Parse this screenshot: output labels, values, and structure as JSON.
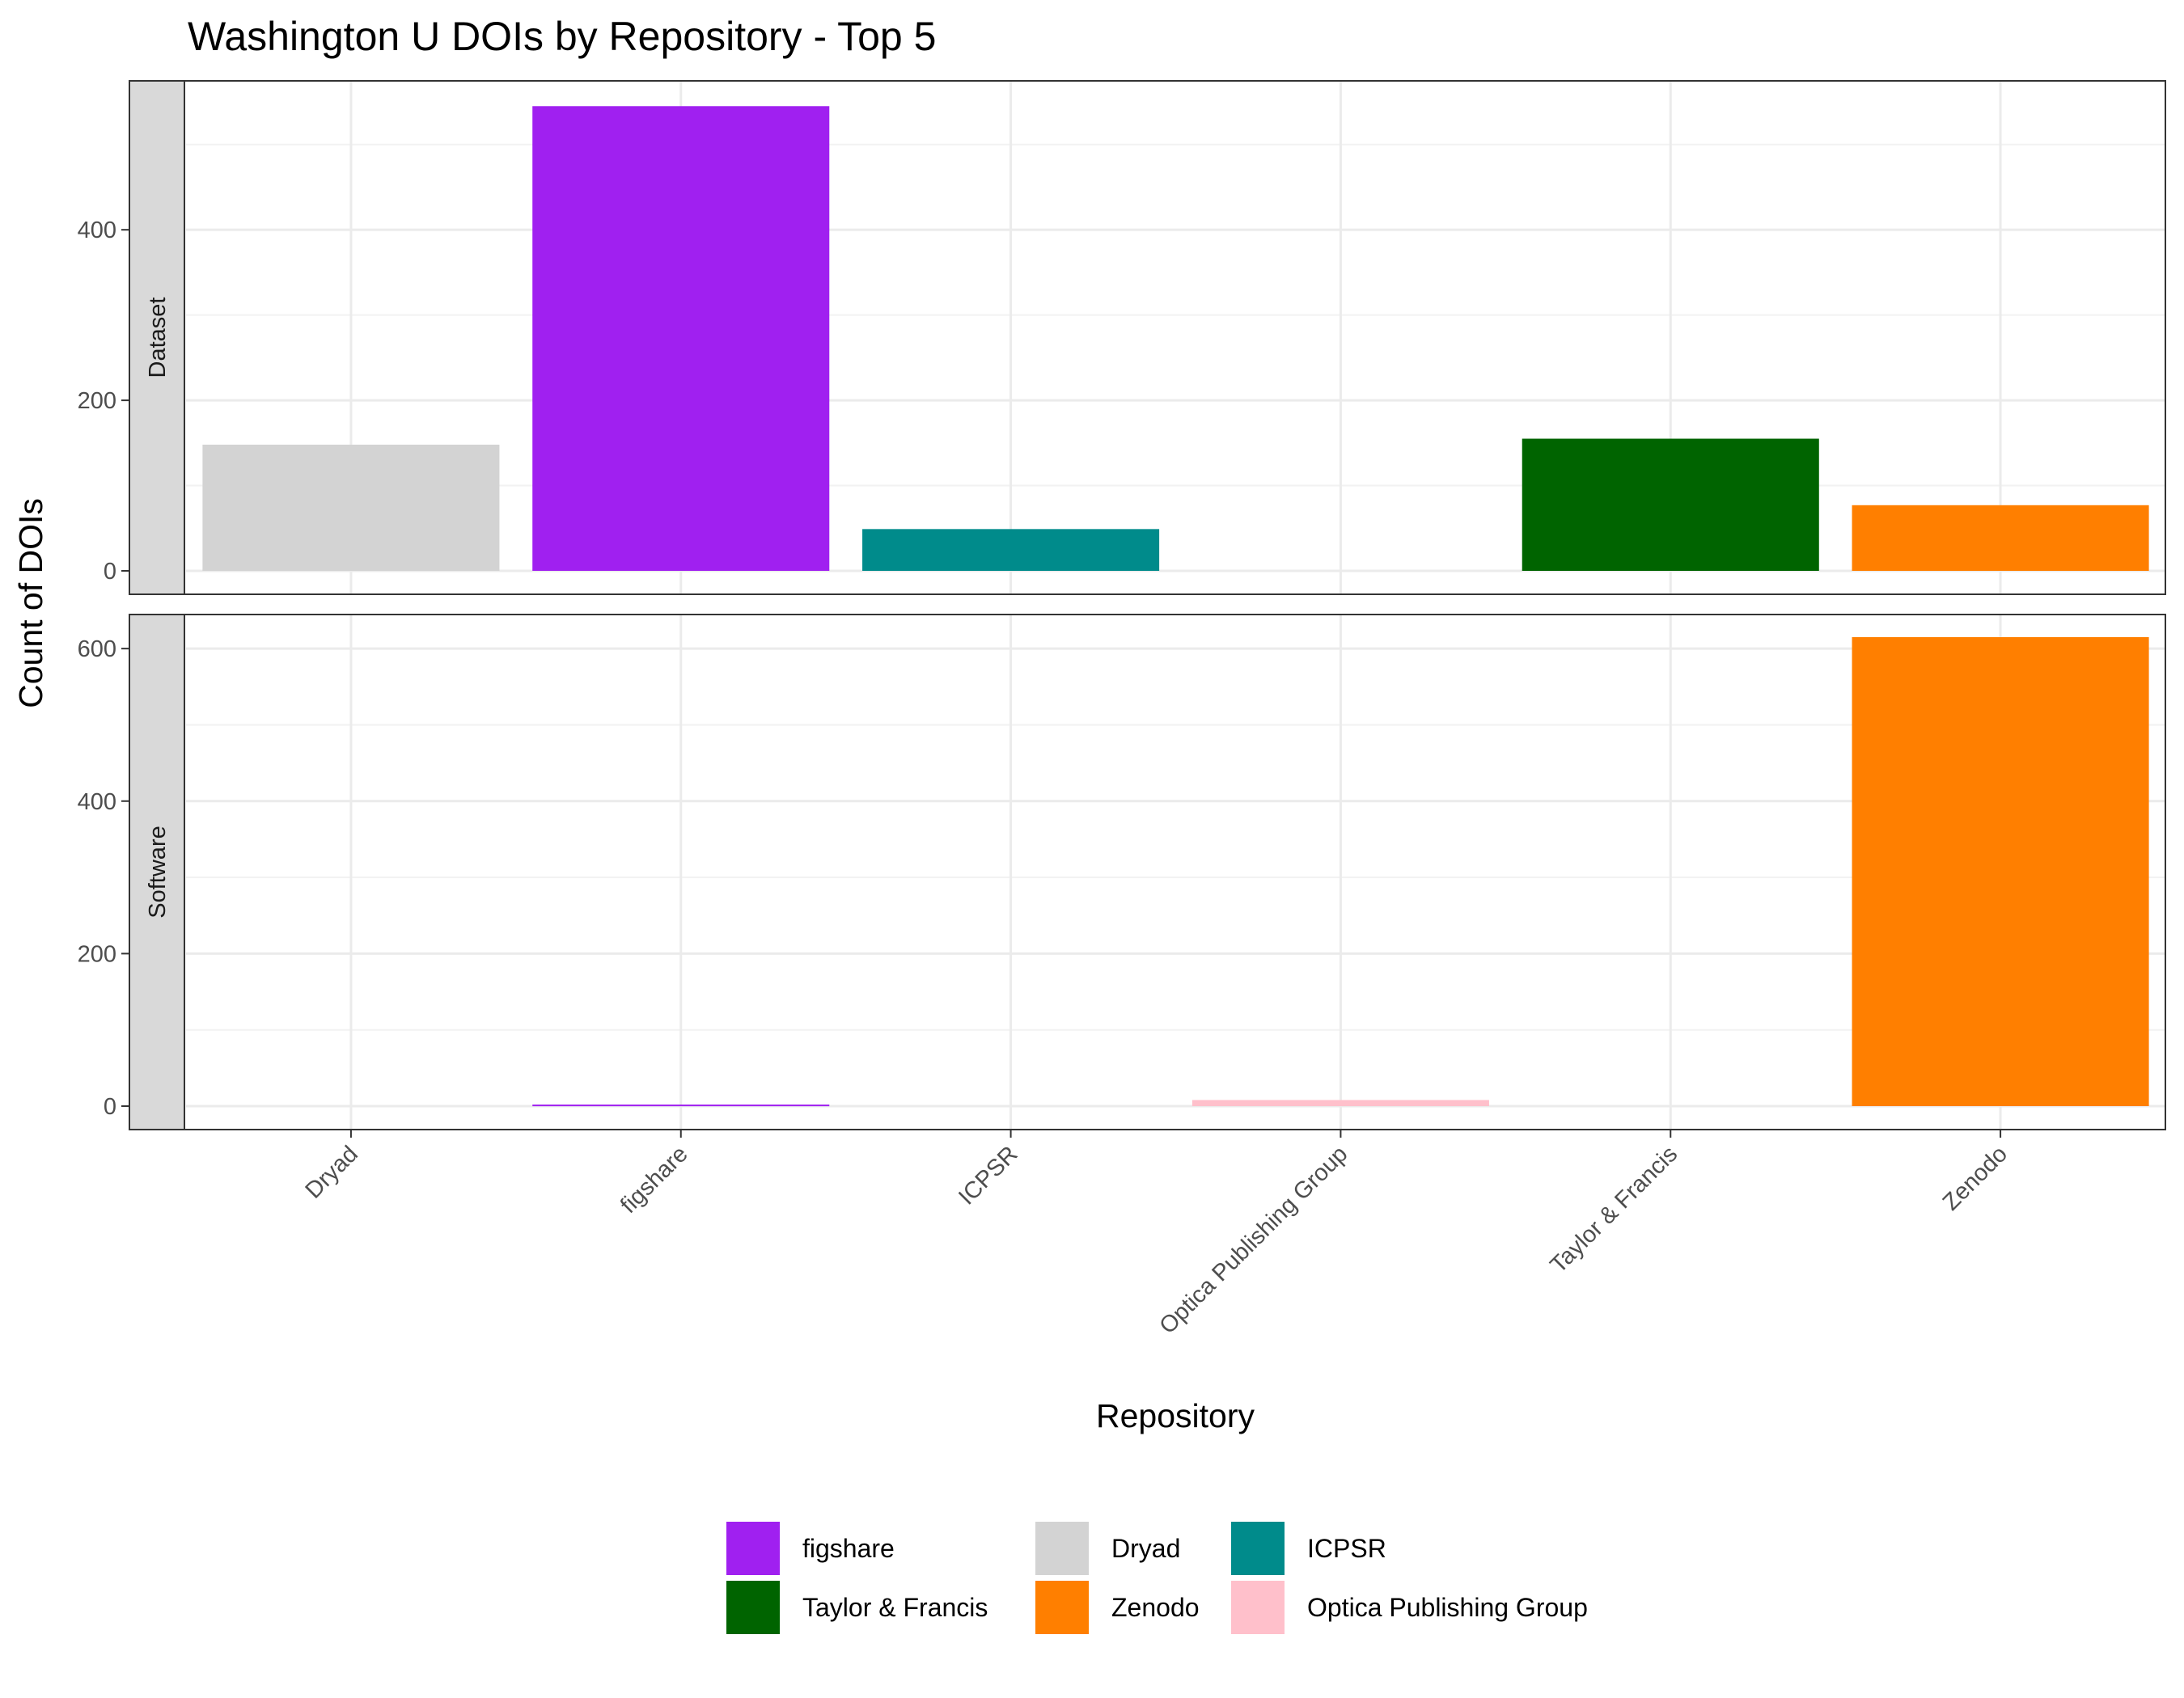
{
  "chart_data": {
    "type": "bar",
    "title": "Washington U DOIs by Repository - Top 5",
    "xlabel": "Repository",
    "ylabel": "Count of DOIs",
    "categories": [
      "Dryad",
      "figshare",
      "ICPSR",
      "Optica Publishing Group",
      "Taylor & Francis",
      "Zenodo"
    ],
    "colors": {
      "Dryad": "#D3D3D3",
      "figshare": "#A020F0",
      "ICPSR": "#008B8B",
      "Optica Publishing Group": "#FFC0CB",
      "Taylor & Francis": "#006400",
      "Zenodo": "#FF7F00"
    },
    "facets": [
      {
        "label": "Dataset",
        "ylim": [
          0,
          550
        ],
        "yticks": [
          0,
          200,
          400
        ],
        "values": [
          148,
          545,
          49,
          0,
          155,
          77
        ]
      },
      {
        "label": "Software",
        "ylim": [
          0,
          615
        ],
        "yticks": [
          0,
          200,
          400,
          600
        ],
        "values": [
          0,
          2,
          0,
          8,
          0,
          615
        ]
      }
    ],
    "legend": {
      "position": "bottom",
      "entries": [
        "figshare",
        "Dryad",
        "ICPSR",
        "Taylor & Francis",
        "Zenodo",
        "Optica Publishing Group"
      ]
    },
    "grid": true
  }
}
